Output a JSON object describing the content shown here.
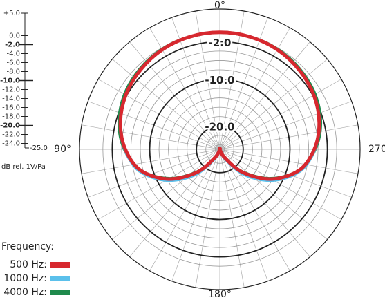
{
  "chart_data": {
    "type": "polar",
    "rlabel": "dB rel. 1V/Pa",
    "legend_title": "Frequency:",
    "rlim": [
      -25,
      5
    ],
    "rticks": [
      {
        "value": 5,
        "label": "+5.0"
      },
      {
        "value": 0,
        "label": "0.0"
      },
      {
        "value": -2,
        "label": "-2.0"
      },
      {
        "value": -4,
        "label": "-4.0"
      },
      {
        "value": -6,
        "label": "-6.0"
      },
      {
        "value": -8,
        "label": "-8.0"
      },
      {
        "value": -10,
        "label": "-10.0"
      },
      {
        "value": -12,
        "label": "-12.0"
      },
      {
        "value": -14,
        "label": "-14.0"
      },
      {
        "value": -16,
        "label": "-16.0"
      },
      {
        "value": -18,
        "label": "-18.0"
      },
      {
        "value": -20,
        "label": "-20.0"
      },
      {
        "value": -22,
        "label": "-22.0"
      },
      {
        "value": -24,
        "label": "-24.0"
      },
      {
        "value": -25,
        "label": "-25.0"
      }
    ],
    "major_rticks": [
      -2,
      -10,
      -20
    ],
    "ring_labels": [
      {
        "value": -2,
        "label": "-2.0"
      },
      {
        "value": -10,
        "label": "-10.0"
      },
      {
        "value": -20,
        "label": "-20.0"
      }
    ],
    "thetaticks": [
      {
        "value": 0,
        "label": "0°"
      },
      {
        "value": 90,
        "label": "90°"
      },
      {
        "value": 180,
        "label": "180°"
      },
      {
        "value": 270,
        "label": "270°"
      }
    ],
    "thetagrid": [
      0,
      10,
      20,
      30,
      40,
      50,
      60,
      70,
      80,
      90,
      100,
      110,
      120,
      130,
      140,
      150,
      160,
      170,
      180,
      190,
      200,
      210,
      220,
      230,
      240,
      250,
      260,
      270,
      280,
      290,
      300,
      310,
      320,
      330,
      340,
      350
    ],
    "theta": [
      0,
      15,
      30,
      45,
      60,
      75,
      90,
      105,
      120,
      135,
      150,
      165,
      180,
      195,
      210,
      225,
      240,
      255,
      270,
      285,
      300,
      315,
      330,
      345
    ],
    "series": [
      {
        "name": "4000 Hz:",
        "color": "#1f8a4c",
        "values": [
          0,
          -0.1,
          -0.3,
          -0.8,
          -1.5,
          -2.7,
          -4.6,
          -7.5,
          -12.5,
          -18.2,
          -23,
          -25,
          -25,
          -25,
          -23,
          -18.2,
          -12.5,
          -7.5,
          -4.6,
          -2.7,
          -1.5,
          -0.8,
          -0.3,
          -0.1
        ]
      },
      {
        "name": "1000 Hz:",
        "color": "#5bc0eb",
        "values": [
          0,
          -0.1,
          -0.4,
          -1,
          -1.8,
          -3,
          -4.7,
          -7.2,
          -11.8,
          -17.2,
          -22.5,
          -25,
          -25,
          -25,
          -22.5,
          -17.2,
          -11.8,
          -7.2,
          -4.7,
          -3,
          -1.8,
          -1,
          -0.4,
          -0.1
        ]
      },
      {
        "name": "500 Hz:",
        "color": "#d7282f",
        "values": [
          0,
          -0.1,
          -0.4,
          -1,
          -1.8,
          -3,
          -4.8,
          -7.5,
          -12.3,
          -18,
          -23,
          -25,
          -25,
          -25,
          -23,
          -18,
          -12.3,
          -7.5,
          -4.8,
          -3,
          -1.8,
          -1,
          -0.4,
          -0.1
        ]
      }
    ]
  }
}
